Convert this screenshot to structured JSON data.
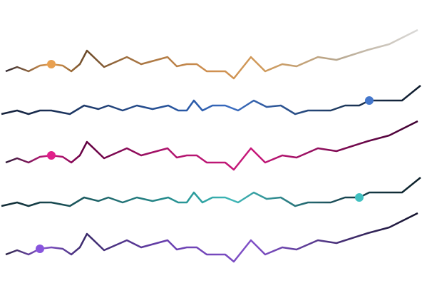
{
  "chart_data": {
    "type": "line",
    "ylim": [
      0,
      80
    ],
    "xlim": [
      0,
      592
    ],
    "series": [
      {
        "x": [
          8,
          24,
          40,
          56,
          72,
          88,
          100,
          112,
          122,
          146,
          178,
          198,
          235,
          248,
          262,
          276,
          290,
          316,
          328,
          352,
          372,
          396,
          416,
          446,
          472,
          516,
          546,
          586
        ],
        "values": [
          15,
          21,
          15,
          23,
          25,
          23,
          15,
          25,
          44,
          21,
          35,
          25,
          35,
          22,
          25,
          25,
          15,
          15,
          5,
          35,
          15,
          25,
          22,
          35,
          31,
          45,
          53,
          73
        ],
        "highlight": 4,
        "marker_color": "#e8a050",
        "color": [
          [
            0,
            "#1a1a2e"
          ],
          [
            0.12,
            "#e8a050"
          ],
          [
            0.2,
            "#6b4a2a"
          ],
          [
            0.3,
            "#a07040"
          ],
          [
            0.5,
            "#d09050"
          ],
          [
            0.62,
            "#d09a5a"
          ],
          [
            0.8,
            "#b8a890"
          ],
          [
            1,
            "#dcdcdc"
          ]
        ]
      },
      {
        "x": [
          2,
          24,
          40,
          56,
          72,
          98,
          118,
          138,
          152,
          172,
          192,
          214,
          236,
          250,
          262,
          272,
          284,
          298,
          316,
          334,
          356,
          374,
          394,
          414,
          432,
          464,
          484,
          504,
          518,
          564,
          590
        ],
        "values": [
          5,
          10,
          5,
          10,
          10,
          5,
          17,
          12,
          17,
          10,
          17,
          12,
          17,
          10,
          10,
          24,
          10,
          17,
          17,
          10,
          24,
          15,
          17,
          5,
          10,
          10,
          17,
          17,
          24,
          24,
          45
        ],
        "highlight": 28,
        "marker_color": "#4477cc",
        "color": [
          [
            0,
            "#142038"
          ],
          [
            0.45,
            "#2a5aa8"
          ],
          [
            0.55,
            "#3a6cc0"
          ],
          [
            0.8,
            "#1e3a60"
          ],
          [
            1,
            "#0e1a2a"
          ]
        ]
      },
      {
        "x": [
          8,
          24,
          40,
          56,
          72,
          88,
          100,
          112,
          122,
          146,
          178,
          198,
          235,
          248,
          262,
          276,
          290,
          316,
          328,
          352,
          372,
          396,
          416,
          446,
          472,
          516,
          546,
          586
        ],
        "values": [
          15,
          21,
          15,
          23,
          25,
          23,
          15,
          25,
          44,
          21,
          35,
          25,
          35,
          22,
          25,
          25,
          15,
          15,
          5,
          35,
          15,
          25,
          22,
          35,
          31,
          45,
          53,
          73
        ],
        "highlight": 4,
        "marker_color": "#e0208a",
        "color": [
          [
            0,
            "#1a1a2e"
          ],
          [
            0.12,
            "#d01880"
          ],
          [
            0.2,
            "#600040"
          ],
          [
            0.4,
            "#b0156e"
          ],
          [
            0.6,
            "#c8187a"
          ],
          [
            1,
            "#3a0030"
          ]
        ]
      },
      {
        "x": [
          2,
          24,
          40,
          56,
          72,
          98,
          118,
          138,
          152,
          172,
          192,
          214,
          236,
          250,
          262,
          272,
          284,
          298,
          316,
          334,
          356,
          374,
          394,
          414,
          432,
          464,
          484,
          504,
          518,
          564,
          590
        ],
        "values": [
          5,
          10,
          5,
          10,
          10,
          5,
          17,
          12,
          17,
          10,
          17,
          12,
          17,
          10,
          10,
          24,
          10,
          17,
          17,
          10,
          24,
          15,
          17,
          5,
          10,
          10,
          17,
          17,
          24,
          24,
          45
        ],
        "highlight": 27,
        "marker_color": "#40c0c0",
        "color": [
          [
            0,
            "#122a34"
          ],
          [
            0.45,
            "#2a9a9a"
          ],
          [
            0.55,
            "#40b8b8"
          ],
          [
            0.8,
            "#1a4a55"
          ],
          [
            1,
            "#0c1e28"
          ]
        ]
      },
      {
        "x": [
          8,
          24,
          40,
          56,
          72,
          88,
          100,
          112,
          122,
          146,
          178,
          198,
          235,
          248,
          262,
          276,
          290,
          316,
          328,
          352,
          372,
          396,
          416,
          446,
          472,
          516,
          546,
          586
        ],
        "values": [
          15,
          21,
          15,
          23,
          25,
          23,
          15,
          25,
          44,
          21,
          35,
          25,
          35,
          22,
          25,
          25,
          15,
          15,
          5,
          35,
          15,
          25,
          22,
          35,
          31,
          45,
          53,
          73
        ],
        "highlight": 3,
        "marker_color": "#8855dd",
        "color": [
          [
            0,
            "#1a1a2e"
          ],
          [
            0.1,
            "#8855d0"
          ],
          [
            0.2,
            "#3a2a6a"
          ],
          [
            0.4,
            "#6a40b0"
          ],
          [
            0.6,
            "#8050c8"
          ],
          [
            1,
            "#12122a"
          ]
        ]
      }
    ]
  }
}
